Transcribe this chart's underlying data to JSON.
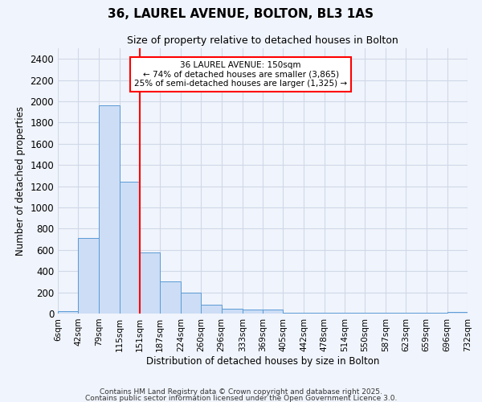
{
  "title1": "36, LAUREL AVENUE, BOLTON, BL3 1AS",
  "title2": "Size of property relative to detached houses in Bolton",
  "xlabel": "Distribution of detached houses by size in Bolton",
  "ylabel": "Number of detached properties",
  "bar_color": "#ccddf5",
  "bar_edge_color": "#5b9bd5",
  "background_color": "#f0f4fc",
  "grid_color": "#d0d8e8",
  "red_line_x": 151,
  "annotation_title": "36 LAUREL AVENUE: 150sqm",
  "annotation_line2": "← 74% of detached houses are smaller (3,865)",
  "annotation_line3": "25% of semi-detached houses are larger (1,325) →",
  "bin_edges": [
    6,
    42,
    79,
    115,
    151,
    187,
    224,
    260,
    296,
    333,
    369,
    405,
    442,
    478,
    514,
    550,
    587,
    623,
    659,
    696,
    732
  ],
  "bar_heights": [
    20,
    715,
    1960,
    1240,
    575,
    305,
    200,
    80,
    45,
    35,
    35,
    5,
    5,
    5,
    5,
    5,
    5,
    5,
    5,
    15
  ],
  "ylim": [
    0,
    2500
  ],
  "yticks": [
    0,
    200,
    400,
    600,
    800,
    1000,
    1200,
    1400,
    1600,
    1800,
    2000,
    2200,
    2400
  ],
  "footer1": "Contains HM Land Registry data © Crown copyright and database right 2025.",
  "footer2": "Contains public sector information licensed under the Open Government Licence 3.0."
}
